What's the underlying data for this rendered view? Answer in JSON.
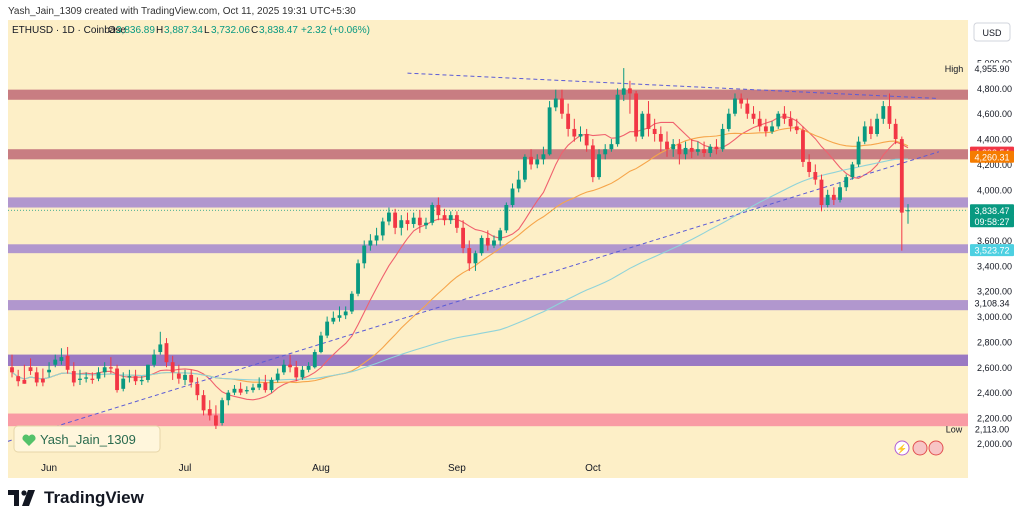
{
  "header": {
    "creator_line": "Yash_Jain_1309 created with TradingView.com, Oct 11, 2025 19:31 UTC+5:30"
  },
  "legend": {
    "symbol": "ETHUSD · 1D · Coinbase",
    "o_label": "O",
    "o": "3,836.89",
    "h_label": "H",
    "h": "3,887.34",
    "l_label": "L",
    "l": "3,732.06",
    "c_label": "C",
    "c": "3,838.47",
    "change": "+2.32 (+0.06%)"
  },
  "watermark": {
    "text": "Yash_Jain_1309"
  },
  "footer": {
    "brand": "TradingView"
  },
  "colors": {
    "background": "#fdefc7",
    "up": "#089981",
    "down": "#f23645",
    "zone_red": "#b85c6e",
    "zone_purple": "#9b7dd0",
    "zone_dark_purple": "#7e57c2",
    "zone_pink": "#f7839a",
    "ma_fast": "#f0616e",
    "ma_mid": "#f6a54a",
    "ma_slow": "#8fd3d9",
    "trendline": "#5b5bd6"
  },
  "chart_data": {
    "type": "candlestick",
    "currency": "USD",
    "x_labels": [
      "Jun",
      "Jul",
      "Aug",
      "Sep",
      "Oct"
    ],
    "y_ticks": [
      2000,
      2200,
      2400,
      2600,
      2800,
      3000,
      3200,
      3400,
      3600,
      3800,
      4000,
      4200,
      4400,
      4600,
      4800,
      5000
    ],
    "ylim": [
      1900,
      5150
    ],
    "high": {
      "label": "High",
      "value": "4,955.90"
    },
    "low": {
      "label": "Low",
      "value": "2,113.00"
    },
    "price_tags": [
      {
        "value": "4,293.54",
        "price": 4293.54,
        "color": "#f23645"
      },
      {
        "value": "4,260.31",
        "price": 4260.31,
        "color": "#f57c00"
      },
      {
        "value": "3,838.47",
        "price": 3838.47,
        "color": "#089981",
        "sub": "09:58:27"
      },
      {
        "value": "3,523.72",
        "price": 3523.72,
        "color": "#4dd0e1"
      },
      {
        "value": "3,108.34",
        "price": 3108.34,
        "color": "none"
      }
    ],
    "zones": [
      {
        "from": 4710,
        "to": 4790,
        "kind": "zone_red"
      },
      {
        "from": 4240,
        "to": 4320,
        "kind": "zone_red"
      },
      {
        "from": 3860,
        "to": 3940,
        "kind": "zone_purple"
      },
      {
        "from": 3500,
        "to": 3570,
        "kind": "zone_purple"
      },
      {
        "from": 3050,
        "to": 3130,
        "kind": "zone_purple"
      },
      {
        "from": 2610,
        "to": 2700,
        "kind": "zone_dark_purple"
      },
      {
        "from": 2135,
        "to": 2235,
        "kind": "zone_pink"
      }
    ],
    "candles": [
      [
        2600,
        2700,
        2560,
        2520
      ],
      [
        2530,
        2580,
        2490,
        2450
      ],
      [
        2500,
        2620,
        2470,
        2480
      ],
      [
        2600,
        2670,
        2570,
        2540
      ],
      [
        2560,
        2600,
        2480,
        2450
      ],
      [
        2510,
        2590,
        2480,
        2450
      ],
      [
        2560,
        2640,
        2580,
        2520
      ],
      [
        2620,
        2700,
        2660,
        2600
      ],
      [
        2650,
        2750,
        2680,
        2620
      ],
      [
        2690,
        2760,
        2580,
        2550
      ],
      [
        2570,
        2640,
        2480,
        2450
      ],
      [
        2500,
        2580,
        2510,
        2460
      ],
      [
        2510,
        2560,
        2520,
        2480
      ],
      [
        2510,
        2560,
        2500,
        2470
      ],
      [
        2510,
        2600,
        2560,
        2490
      ],
      [
        2560,
        2640,
        2600,
        2520
      ],
      [
        2600,
        2680,
        2590,
        2550
      ],
      [
        2590,
        2620,
        2420,
        2400
      ],
      [
        2430,
        2560,
        2510,
        2410
      ],
      [
        2520,
        2580,
        2530,
        2480
      ],
      [
        2530,
        2580,
        2490,
        2460
      ],
      [
        2490,
        2530,
        2500,
        2460
      ],
      [
        2500,
        2620,
        2620,
        2480
      ],
      [
        2620,
        2740,
        2700,
        2600
      ],
      [
        2720,
        2880,
        2780,
        2700
      ],
      [
        2790,
        2830,
        2640,
        2600
      ],
      [
        2640,
        2690,
        2560,
        2500
      ],
      [
        2550,
        2620,
        2510,
        2470
      ],
      [
        2500,
        2580,
        2540,
        2460
      ],
      [
        2540,
        2580,
        2480,
        2440
      ],
      [
        2470,
        2520,
        2380,
        2340
      ],
      [
        2380,
        2420,
        2260,
        2220
      ],
      [
        2270,
        2340,
        2220,
        2180
      ],
      [
        2220,
        2300,
        2140,
        2113
      ],
      [
        2160,
        2360,
        2340,
        2140
      ],
      [
        2340,
        2420,
        2400,
        2300
      ],
      [
        2400,
        2460,
        2430,
        2380
      ],
      [
        2430,
        2480,
        2400,
        2380
      ],
      [
        2410,
        2450,
        2420,
        2390
      ],
      [
        2420,
        2470,
        2440,
        2400
      ],
      [
        2440,
        2520,
        2470,
        2420
      ],
      [
        2480,
        2540,
        2420,
        2400
      ],
      [
        2420,
        2520,
        2500,
        2400
      ],
      [
        2500,
        2590,
        2550,
        2480
      ],
      [
        2560,
        2660,
        2620,
        2540
      ],
      [
        2620,
        2700,
        2600,
        2560
      ],
      [
        2600,
        2650,
        2520,
        2490
      ],
      [
        2520,
        2610,
        2580,
        2500
      ],
      [
        2580,
        2640,
        2610,
        2560
      ],
      [
        2600,
        2740,
        2720,
        2590
      ],
      [
        2720,
        2880,
        2850,
        2710
      ],
      [
        2850,
        3000,
        2960,
        2830
      ],
      [
        2960,
        3040,
        2990,
        2940
      ],
      [
        2990,
        3080,
        3010,
        2960
      ],
      [
        3010,
        3080,
        3040,
        2980
      ],
      [
        3040,
        3200,
        3180,
        3020
      ],
      [
        3180,
        3450,
        3420,
        3160
      ],
      [
        3420,
        3600,
        3560,
        3380
      ],
      [
        3560,
        3650,
        3600,
        3520
      ],
      [
        3600,
        3700,
        3640,
        3560
      ],
      [
        3640,
        3780,
        3750,
        3600
      ],
      [
        3750,
        3860,
        3820,
        3720
      ],
      [
        3820,
        3850,
        3700,
        3650
      ],
      [
        3700,
        3800,
        3760,
        3640
      ],
      [
        3760,
        3820,
        3730,
        3680
      ],
      [
        3730,
        3820,
        3780,
        3700
      ],
      [
        3780,
        3840,
        3720,
        3660
      ],
      [
        3720,
        3780,
        3740,
        3690
      ],
      [
        3740,
        3900,
        3880,
        3720
      ],
      [
        3880,
        3940,
        3800,
        3760
      ],
      [
        3800,
        3850,
        3760,
        3720
      ],
      [
        3760,
        3830,
        3800,
        3730
      ],
      [
        3800,
        3830,
        3700,
        3660
      ],
      [
        3700,
        3760,
        3540,
        3500
      ],
      [
        3540,
        3600,
        3420,
        3360
      ],
      [
        3420,
        3520,
        3500,
        3360
      ],
      [
        3500,
        3640,
        3620,
        3480
      ],
      [
        3620,
        3680,
        3560,
        3520
      ],
      [
        3560,
        3640,
        3600,
        3540
      ],
      [
        3600,
        3700,
        3680,
        3560
      ],
      [
        3680,
        3900,
        3880,
        3660
      ],
      [
        3880,
        4050,
        4010,
        3860
      ],
      [
        4010,
        4150,
        4080,
        3980
      ],
      [
        4080,
        4280,
        4260,
        4060
      ],
      [
        4260,
        4320,
        4200,
        4160
      ],
      [
        4200,
        4280,
        4240,
        4170
      ],
      [
        4240,
        4340,
        4280,
        4200
      ],
      [
        4280,
        4700,
        4650,
        4270
      ],
      [
        4650,
        4790,
        4720,
        4620
      ],
      [
        4720,
        4790,
        4600,
        4560
      ],
      [
        4600,
        4680,
        4480,
        4420
      ],
      [
        4480,
        4560,
        4420,
        4380
      ],
      [
        4420,
        4500,
        4440,
        4380
      ],
      [
        4440,
        4480,
        4350,
        4300
      ],
      [
        4350,
        4400,
        4100,
        4060
      ],
      [
        4100,
        4320,
        4280,
        4080
      ],
      [
        4280,
        4360,
        4320,
        4240
      ],
      [
        4320,
        4400,
        4360,
        4300
      ],
      [
        4360,
        4800,
        4750,
        4340
      ],
      [
        4750,
        4960,
        4800,
        4700
      ],
      [
        4800,
        4860,
        4760,
        4600
      ],
      [
        4760,
        4780,
        4420,
        4380
      ],
      [
        4420,
        4620,
        4600,
        4400
      ],
      [
        4600,
        4700,
        4480,
        4420
      ],
      [
        4480,
        4560,
        4440,
        4380
      ],
      [
        4440,
        4500,
        4380,
        4300
      ],
      [
        4380,
        4460,
        4320,
        4260
      ],
      [
        4320,
        4400,
        4360,
        4260
      ],
      [
        4360,
        4400,
        4280,
        4200
      ],
      [
        4280,
        4380,
        4330,
        4240
      ],
      [
        4330,
        4400,
        4300,
        4250
      ],
      [
        4300,
        4380,
        4320,
        4270
      ],
      [
        4320,
        4380,
        4290,
        4260
      ],
      [
        4290,
        4360,
        4340,
        4260
      ],
      [
        4340,
        4400,
        4320,
        4280
      ],
      [
        4320,
        4520,
        4480,
        4300
      ],
      [
        4480,
        4640,
        4600,
        4460
      ],
      [
        4600,
        4760,
        4720,
        4580
      ],
      [
        4720,
        4760,
        4680,
        4640
      ],
      [
        4680,
        4720,
        4600,
        4560
      ],
      [
        4600,
        4660,
        4560,
        4520
      ],
      [
        4560,
        4620,
        4500,
        4460
      ],
      [
        4500,
        4560,
        4460,
        4420
      ],
      [
        4460,
        4540,
        4500,
        4440
      ],
      [
        4500,
        4620,
        4600,
        4480
      ],
      [
        4600,
        4660,
        4560,
        4520
      ],
      [
        4560,
        4620,
        4500,
        4460
      ],
      [
        4500,
        4560,
        4470,
        4440
      ],
      [
        4470,
        4500,
        4220,
        4180
      ],
      [
        4220,
        4280,
        4140,
        4100
      ],
      [
        4140,
        4200,
        4080,
        4040
      ],
      [
        4080,
        4120,
        3880,
        3830
      ],
      [
        3880,
        4000,
        3960,
        3860
      ],
      [
        3960,
        4020,
        3920,
        3880
      ],
      [
        3920,
        4060,
        4020,
        3900
      ],
      [
        4020,
        4120,
        4100,
        3990
      ],
      [
        4100,
        4220,
        4200,
        4080
      ],
      [
        4200,
        4420,
        4380,
        4180
      ],
      [
        4380,
        4540,
        4500,
        4360
      ],
      [
        4500,
        4560,
        4440,
        4400
      ],
      [
        4440,
        4600,
        4560,
        4420
      ],
      [
        4560,
        4700,
        4660,
        4520
      ],
      [
        4660,
        4760,
        4520,
        4480
      ],
      [
        4520,
        4560,
        4400,
        4360
      ],
      [
        4400,
        4420,
        3820,
        3520
      ],
      [
        3836.89,
        3887.34,
        3838.47,
        3732.06
      ]
    ],
    "x_label_index": [
      6,
      28,
      50,
      72,
      94
    ],
    "trendlines": [
      {
        "from": [
          -5,
          1950
        ],
        "to": [
          150,
          4300
        ]
      },
      {
        "from": [
          64,
          4920
        ],
        "to": [
          150,
          4720
        ]
      }
    ]
  }
}
